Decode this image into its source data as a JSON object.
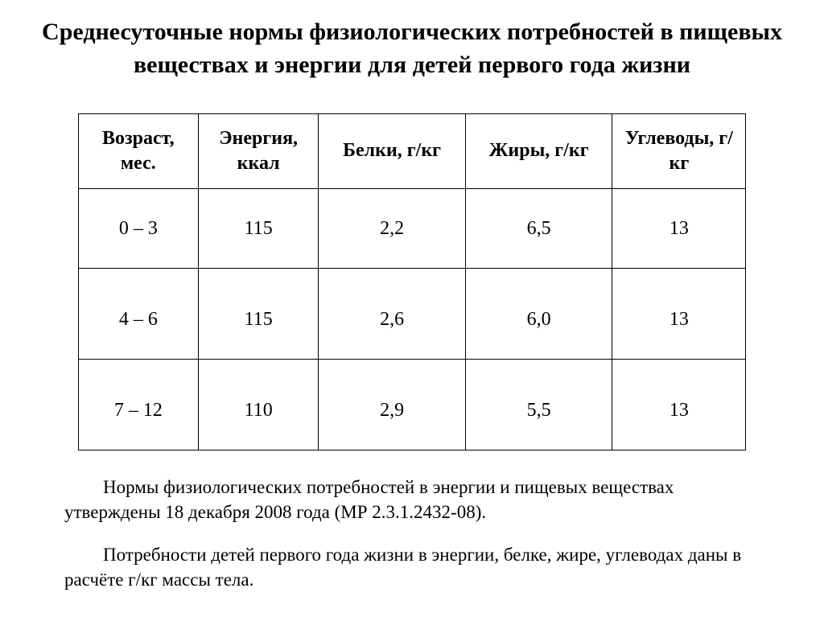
{
  "title": "Среднесуточные нормы физиологических потребностей в пищевых веществах и энергии для детей первого года жизни",
  "table": {
    "columns": [
      "Возраст, мес.",
      "Энергия, ккал",
      "Белки, г/кг",
      "Жиры,   г/кг",
      "Углеводы, г/кг"
    ],
    "rows": [
      [
        "0 – 3",
        "115",
        "2,2",
        "6,5",
        "13"
      ],
      [
        "4 – 6",
        "115",
        "2,6",
        "6,0",
        "13"
      ],
      [
        "7 – 12",
        "110",
        "2,9",
        "5,5",
        "13"
      ]
    ],
    "border_color": "#000000",
    "header_fontsize": 24,
    "cell_fontsize": 24,
    "col_widths_pct": [
      18,
      18,
      22,
      22,
      20
    ]
  },
  "footnotes": [
    "Нормы физиологических потребностей в энергии и пищевых веществах утверждены 18 декабря 2008 года (МР 2.3.1.2432-08).",
    "Потребности детей первого года жизни в энергии, белке, жире, углеводах даны в расчёте г/кг массы тела."
  ],
  "styling": {
    "background_color": "#ffffff",
    "text_color": "#000000",
    "font_family": "Times New Roman",
    "title_fontsize": 30,
    "footnote_fontsize": 23
  }
}
